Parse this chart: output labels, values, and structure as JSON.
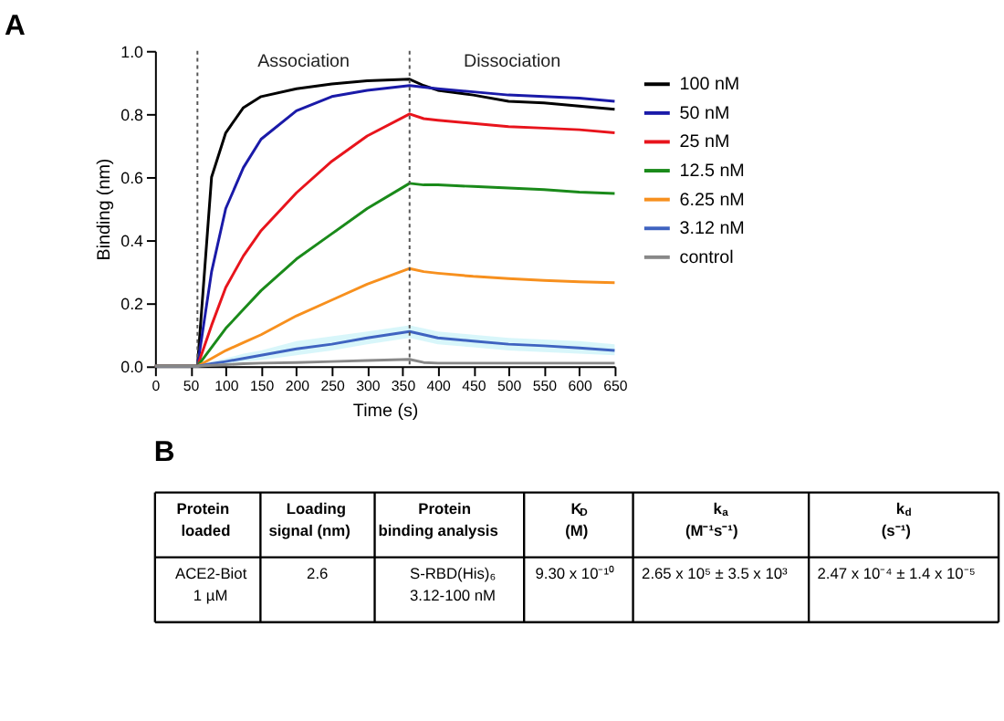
{
  "chart_data": [
    {
      "type": "line",
      "title": "A",
      "xlabel": "Time (s)",
      "ylabel": "Binding (nm)",
      "x": [
        0,
        60,
        80,
        100,
        125,
        150,
        200,
        250,
        300,
        360,
        380,
        400,
        450,
        500,
        550,
        600,
        650
      ],
      "series": [
        {
          "name": "100 nM",
          "color": "#000000",
          "values": [
            0,
            0,
            0.6,
            0.74,
            0.82,
            0.855,
            0.88,
            0.895,
            0.905,
            0.91,
            0.89,
            0.875,
            0.86,
            0.84,
            0.835,
            0.825,
            0.815
          ]
        },
        {
          "name": "50 nM",
          "color": "#1a1aa8",
          "values": [
            0,
            0,
            0.3,
            0.5,
            0.63,
            0.72,
            0.81,
            0.855,
            0.875,
            0.89,
            0.885,
            0.88,
            0.87,
            0.86,
            0.855,
            0.85,
            0.84
          ]
        },
        {
          "name": "25 nM",
          "color": "#e8141c",
          "values": [
            0,
            0,
            0.13,
            0.25,
            0.35,
            0.43,
            0.55,
            0.65,
            0.73,
            0.8,
            0.785,
            0.78,
            0.77,
            0.76,
            0.755,
            0.75,
            0.74
          ]
        },
        {
          "name": "12.5 nM",
          "color": "#1a8a1a",
          "values": [
            0,
            0,
            0.06,
            0.12,
            0.18,
            0.24,
            0.34,
            0.42,
            0.5,
            0.58,
            0.575,
            0.575,
            0.57,
            0.565,
            0.56,
            0.552,
            0.548
          ]
        },
        {
          "name": "6.25 nM",
          "color": "#f7901e",
          "values": [
            0,
            0,
            0.025,
            0.05,
            0.075,
            0.1,
            0.16,
            0.21,
            0.26,
            0.31,
            0.3,
            0.295,
            0.285,
            0.278,
            0.272,
            0.268,
            0.265
          ]
        },
        {
          "name": "3.12 nM",
          "color": "#3f63c0",
          "values": [
            0,
            0,
            0.008,
            0.015,
            0.025,
            0.035,
            0.055,
            0.07,
            0.09,
            0.11,
            0.1,
            0.09,
            0.08,
            0.07,
            0.065,
            0.058,
            0.05
          ],
          "lower": [
            0,
            0,
            0.003,
            0.008,
            0.015,
            0.02,
            0.035,
            0.05,
            0.07,
            0.09,
            0.08,
            0.07,
            0.06,
            0.05,
            0.045,
            0.04,
            0.035
          ],
          "upper": [
            0.005,
            0.005,
            0.015,
            0.025,
            0.04,
            0.05,
            0.08,
            0.095,
            0.11,
            0.13,
            0.12,
            0.11,
            0.1,
            0.09,
            0.085,
            0.08,
            0.07
          ]
        },
        {
          "name": "control",
          "color": "#888888",
          "values": [
            0,
            0,
            0.003,
            0.005,
            0.008,
            0.01,
            0.012,
            0.015,
            0.018,
            0.022,
            0.012,
            0.01,
            0.01,
            0.01,
            0.01,
            0.01,
            0.01
          ]
        }
      ],
      "xlim": [
        0,
        650
      ],
      "xticks": [
        0,
        50,
        100,
        150,
        200,
        250,
        300,
        350,
        400,
        450,
        500,
        550,
        600,
        650
      ],
      "ylim": [
        0,
        1.0
      ],
      "yticks": [
        {
          "value": 0,
          "label": "0.0"
        },
        0.2,
        0.4,
        0.6,
        0.8,
        {
          "value": 1.0,
          "label": "1.0"
        }
      ],
      "ref_lines": [
        {
          "axis": "x",
          "value": 60,
          "color": "#555555",
          "line_style": "dotted"
        },
        {
          "axis": "x",
          "value": 360,
          "color": "#555555",
          "line_style": "dotted"
        }
      ],
      "annotations": [
        "Association",
        "Dissociation"
      ],
      "grid": false,
      "legend": "right",
      "line_style": "solid",
      "marker": "none"
    },
    {
      "type": "other",
      "title": "B",
      "annotations": [
        "Protein\nloaded",
        "Loading\nsignal (nm)",
        "Protein\nbinding analysis",
        "K$_{D}$\n(M)",
        "k$_{a}$\n(M⁻¹s⁻¹)",
        "k$_{d}$\n(s⁻¹)",
        "ACE2-Biot\n1 µM",
        "2.6",
        "S-RBD(His)₆\n3.12-100 nM",
        "9.30 x 10⁻¹⁰",
        "2.65 x 10⁵ ± 3.5 x 10³",
        "2.47 x 10⁻⁴ ± 1.4 x 10⁻⁵"
      ]
    }
  ]
}
